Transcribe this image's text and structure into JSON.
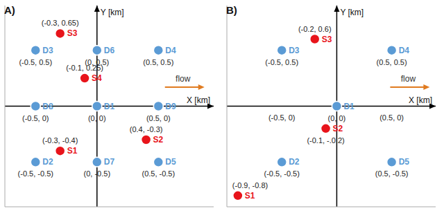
{
  "chart_data": [
    {
      "type": "scatter",
      "title": "A)",
      "x_label": "X [km]",
      "y_label": "Y [km]",
      "xlim": [
        -0.75,
        0.95
      ],
      "ylim": [
        -0.9,
        0.9
      ],
      "tick_labels": false,
      "series": [
        {
          "color": "#5b9bd5",
          "marker": "circle",
          "labels": [
            "D1",
            "D2",
            "D3",
            "D4",
            "D5",
            "D6",
            "D7",
            "D8",
            "D9"
          ],
          "x": [
            0,
            -0.5,
            -0.5,
            0.5,
            0.5,
            0,
            0,
            -0.5,
            0.5
          ],
          "y": [
            0,
            -0.5,
            0.5,
            0.5,
            -0.5,
            0.5,
            -0.5,
            0,
            0
          ],
          "value_labels": [
            "(0, 0)",
            "(-0.5, -0.5)",
            "(-0.5, 0.5)",
            "(0.5, 0.5)",
            "(0.5, -0.5)",
            "(0, 0.5)",
            "(0, -0.5)",
            "(-0.5, 0)",
            "(0.5, 0)"
          ]
        },
        {
          "color": "#e8141b",
          "marker": "circle",
          "labels": [
            "S1",
            "S2",
            "S3",
            "S4"
          ],
          "x": [
            -0.3,
            0.4,
            -0.3,
            -0.1
          ],
          "y": [
            -0.4,
            -0.3,
            0.65,
            0.25
          ],
          "value_labels": [
            "(-0.3, -0.4)",
            "(0.4, -0.3)",
            "(-0.3, 0.65)",
            "(-0.1, 0.25)"
          ]
        }
      ],
      "annotations": [
        {
          "text": "flow",
          "x": 0.7,
          "y": 0.22,
          "marker": "arrow"
        }
      ]
    },
    {
      "type": "scatter",
      "title": "B)",
      "x_label": "X [km]",
      "y_label": "Y [km]",
      "xlim": [
        -1.0,
        0.9
      ],
      "ylim": [
        -0.9,
        0.9
      ],
      "tick_labels": false,
      "series": [
        {
          "color": "#5b9bd5",
          "marker": "circle",
          "labels": [
            "D1",
            "D2",
            "D3",
            "D4",
            "D5"
          ],
          "x": [
            0,
            -0.5,
            -0.5,
            0.5,
            0.5
          ],
          "y": [
            0,
            -0.5,
            0.5,
            0.5,
            -0.5
          ],
          "value_labels": [
            "(0, 0)",
            "(-0.5, -0.5)",
            "(-0.5, 0.5)",
            "(0.5, 0.5)",
            "(0.5, -0.5)"
          ]
        },
        {
          "color": "#e8141b",
          "marker": "circle",
          "labels": [
            "S1",
            "S2",
            "S3"
          ],
          "x": [
            -0.9,
            -0.1,
            -0.2
          ],
          "y": [
            -0.8,
            -0.2,
            0.6
          ],
          "value_labels": [
            "(-0.9, -0.8)",
            "(-0.1, -.0.2)",
            "(-0.2, 0.6)"
          ]
        }
      ],
      "annotations": [
        {
          "text": "flow",
          "x": 0.65,
          "y": 0.22,
          "marker": "arrow"
        },
        {
          "text": "(-0.5, 0)",
          "x": -0.5,
          "y": 0
        },
        {
          "text": "(0.5, 0)",
          "x": 0.5,
          "y": 0
        }
      ]
    }
  ]
}
